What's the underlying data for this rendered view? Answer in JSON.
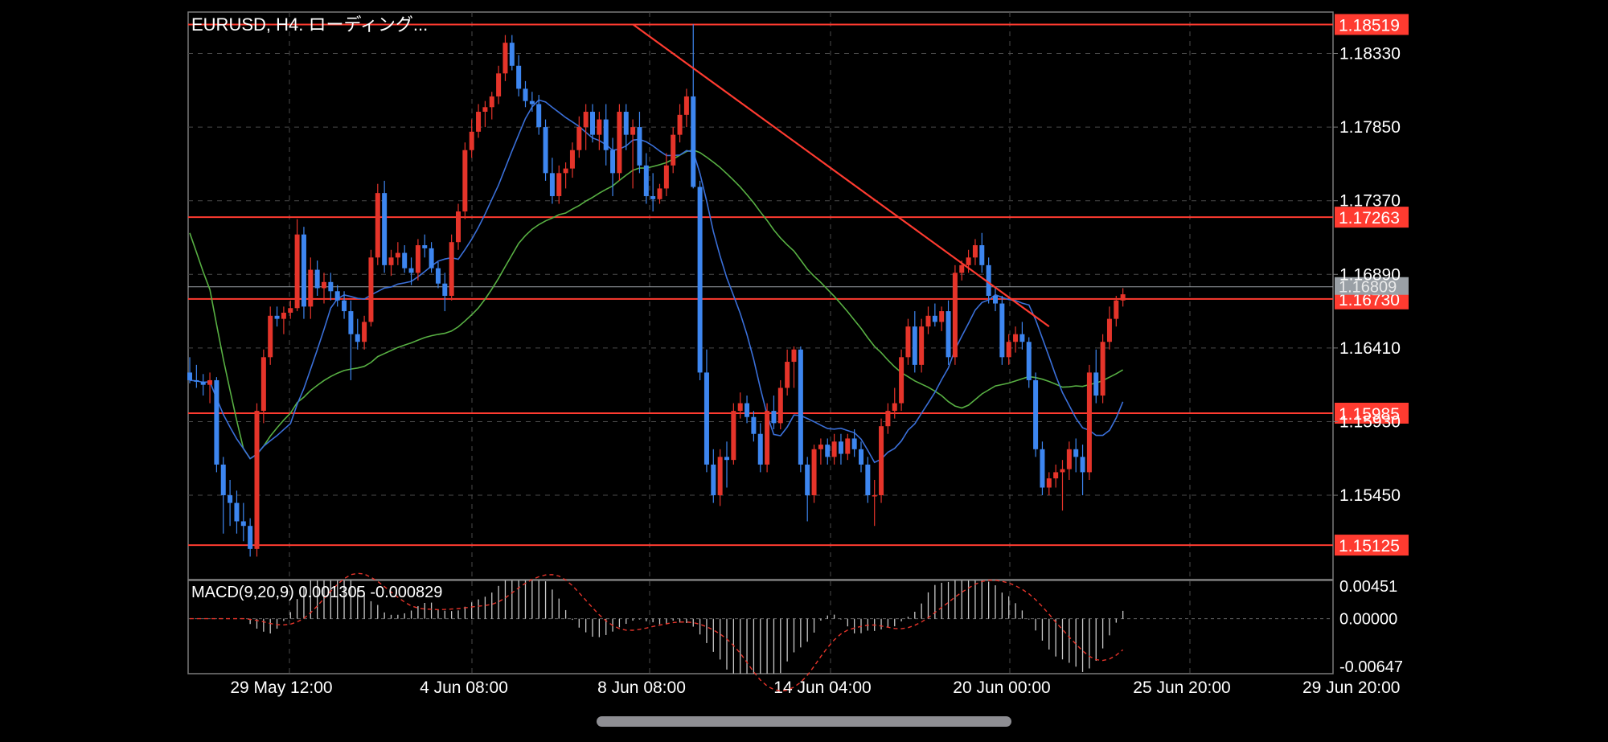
{
  "header": {
    "title": "EURUSD, H4. ローディング..."
  },
  "macd_label": "MACD(9,20,9) 0.001305 -0.000829",
  "colors": {
    "bull": "#e5342a",
    "bear": "#3d86f0",
    "line_red": "#ff3b30",
    "ma_fast": "#3a6fd8",
    "ma_slow": "#58b043",
    "grid": "#4a4a4a"
  },
  "chart_data": [
    {
      "type": "candlestick",
      "title": "EURUSD, H4. ローディング...",
      "ylim": [
        1.149,
        1.186
      ],
      "price_ticks": [
        "1.18330",
        "1.17850",
        "1.17370",
        "1.16890",
        "1.16410",
        "1.15930",
        "1.15450"
      ],
      "x_ticks": [
        "29 May 12:00",
        "4 Jun 08:00",
        "8 Jun 08:00",
        "14 Jun 04:00",
        "20 Jun 00:00",
        "25 Jun 20:00",
        "29 Jun 20:00"
      ],
      "current_price": "1.16809",
      "horizontal_lines": [
        {
          "label": "1.18519",
          "value": 1.18519
        },
        {
          "label": "1.17263",
          "value": 1.17263
        },
        {
          "label": "1.16730",
          "value": 1.1673
        },
        {
          "label": "1.15985",
          "value": 1.15985
        },
        {
          "label": "1.15125",
          "value": 1.15125
        }
      ],
      "trendline": {
        "from": {
          "bar": 66,
          "price": 1.1852
        },
        "to": {
          "bar": 128,
          "price": 1.1655
        }
      },
      "candles": [
        [
          1.1625,
          1.1635,
          1.1618,
          1.162
        ],
        [
          1.162,
          1.163,
          1.1615,
          1.1619
        ],
        [
          1.1619,
          1.1624,
          1.161,
          1.1617
        ],
        [
          1.1617,
          1.1625,
          1.1605,
          1.162
        ],
        [
          1.162,
          1.1622,
          1.156,
          1.1565
        ],
        [
          1.1565,
          1.157,
          1.152,
          1.1545
        ],
        [
          1.1545,
          1.1555,
          1.1525,
          1.154
        ],
        [
          1.154,
          1.1548,
          1.152,
          1.1528
        ],
        [
          1.1528,
          1.154,
          1.1515,
          1.1525
        ],
        [
          1.1525,
          1.153,
          1.1505,
          1.151
        ],
        [
          1.151,
          1.1605,
          1.1505,
          1.16
        ],
        [
          1.16,
          1.164,
          1.1592,
          1.1635
        ],
        [
          1.1635,
          1.1668,
          1.163,
          1.1662
        ],
        [
          1.1662,
          1.1668,
          1.1655,
          1.166
        ],
        [
          1.166,
          1.1668,
          1.165,
          1.1664
        ],
        [
          1.1664,
          1.1672,
          1.166,
          1.1667
        ],
        [
          1.1667,
          1.1725,
          1.1665,
          1.1715
        ],
        [
          1.1715,
          1.172,
          1.166,
          1.1668
        ],
        [
          1.1668,
          1.17,
          1.166,
          1.1692
        ],
        [
          1.1692,
          1.1698,
          1.1675,
          1.168
        ],
        [
          1.168,
          1.169,
          1.167,
          1.1684
        ],
        [
          1.1684,
          1.169,
          1.1672,
          1.1678
        ],
        [
          1.1678,
          1.1682,
          1.1668,
          1.1672
        ],
        [
          1.1672,
          1.1678,
          1.166,
          1.1665
        ],
        [
          1.1665,
          1.1672,
          1.162,
          1.165
        ],
        [
          1.165,
          1.166,
          1.164,
          1.1645
        ],
        [
          1.1645,
          1.1662,
          1.164,
          1.1658
        ],
        [
          1.1658,
          1.1705,
          1.1655,
          1.17
        ],
        [
          1.17,
          1.1748,
          1.1695,
          1.1742
        ],
        [
          1.1742,
          1.175,
          1.169,
          1.1695
        ],
        [
          1.1695,
          1.1705,
          1.1688,
          1.17
        ],
        [
          1.17,
          1.171,
          1.1695,
          1.1703
        ],
        [
          1.1703,
          1.1708,
          1.169,
          1.1693
        ],
        [
          1.1693,
          1.17,
          1.1682,
          1.169
        ],
        [
          1.169,
          1.1712,
          1.1685,
          1.1708
        ],
        [
          1.1708,
          1.1715,
          1.17,
          1.1706
        ],
        [
          1.1706,
          1.171,
          1.169,
          1.1693
        ],
        [
          1.1693,
          1.1697,
          1.168,
          1.1683
        ],
        [
          1.1683,
          1.169,
          1.1665,
          1.1675
        ],
        [
          1.1675,
          1.1715,
          1.1672,
          1.171
        ],
        [
          1.171,
          1.1735,
          1.1705,
          1.173
        ],
        [
          1.173,
          1.1775,
          1.1725,
          1.177
        ],
        [
          1.177,
          1.179,
          1.1765,
          1.1782
        ],
        [
          1.1782,
          1.18,
          1.1778,
          1.1795
        ],
        [
          1.1795,
          1.1802,
          1.1785,
          1.1798
        ],
        [
          1.1798,
          1.1808,
          1.179,
          1.1805
        ],
        [
          1.1805,
          1.1825,
          1.18,
          1.182
        ],
        [
          1.182,
          1.1845,
          1.1815,
          1.184
        ],
        [
          1.184,
          1.1845,
          1.1822,
          1.1825
        ],
        [
          1.1825,
          1.1832,
          1.1805,
          1.181
        ],
        [
          1.181,
          1.1815,
          1.1798,
          1.1802
        ],
        [
          1.1802,
          1.1808,
          1.1795,
          1.18
        ],
        [
          1.18,
          1.1806,
          1.178,
          1.1785
        ],
        [
          1.1785,
          1.179,
          1.175,
          1.1755
        ],
        [
          1.1755,
          1.1765,
          1.1735,
          1.174
        ],
        [
          1.174,
          1.176,
          1.1735,
          1.1755
        ],
        [
          1.1755,
          1.1762,
          1.1745,
          1.1758
        ],
        [
          1.1758,
          1.1775,
          1.1752,
          1.177
        ],
        [
          1.177,
          1.1792,
          1.1765,
          1.1785
        ],
        [
          1.1785,
          1.18,
          1.177,
          1.1795
        ],
        [
          1.1795,
          1.18,
          1.1775,
          1.178
        ],
        [
          1.178,
          1.1795,
          1.177,
          1.179
        ],
        [
          1.179,
          1.18,
          1.176,
          1.177
        ],
        [
          1.177,
          1.1778,
          1.174,
          1.1755
        ],
        [
          1.1755,
          1.18,
          1.175,
          1.1795
        ],
        [
          1.1795,
          1.18,
          1.177,
          1.178
        ],
        [
          1.178,
          1.179,
          1.1745,
          1.1785
        ],
        [
          1.1785,
          1.1795,
          1.1755,
          1.176
        ],
        [
          1.176,
          1.1768,
          1.1735,
          1.174
        ],
        [
          1.174,
          1.1755,
          1.173,
          1.1738
        ],
        [
          1.1738,
          1.1748,
          1.1735,
          1.1745
        ],
        [
          1.1745,
          1.1768,
          1.174,
          1.176
        ],
        [
          1.176,
          1.1785,
          1.1755,
          1.178
        ],
        [
          1.178,
          1.18,
          1.1775,
          1.1793
        ],
        [
          1.1793,
          1.181,
          1.1785,
          1.1805
        ],
        [
          1.1805,
          1.1852,
          1.1745,
          1.1746
        ],
        [
          1.1746,
          1.175,
          1.162,
          1.1625
        ],
        [
          1.1625,
          1.164,
          1.156,
          1.1565
        ],
        [
          1.1565,
          1.1575,
          1.154,
          1.1545
        ],
        [
          1.1545,
          1.1575,
          1.1538,
          1.157
        ],
        [
          1.157,
          1.158,
          1.155,
          1.1568
        ],
        [
          1.1568,
          1.1605,
          1.1565,
          1.16
        ],
        [
          1.16,
          1.1612,
          1.1595,
          1.1605
        ],
        [
          1.1605,
          1.161,
          1.1592,
          1.1596
        ],
        [
          1.1596,
          1.16,
          1.158,
          1.1585
        ],
        [
          1.1585,
          1.1592,
          1.156,
          1.1565
        ],
        [
          1.1565,
          1.1605,
          1.156,
          1.16
        ],
        [
          1.16,
          1.161,
          1.1588,
          1.1592
        ],
        [
          1.1592,
          1.162,
          1.1588,
          1.1615
        ],
        [
          1.1615,
          1.164,
          1.161,
          1.1632
        ],
        [
          1.1632,
          1.1642,
          1.1615,
          1.164
        ],
        [
          1.164,
          1.1642,
          1.156,
          1.1565
        ],
        [
          1.1565,
          1.157,
          1.1528,
          1.1545
        ],
        [
          1.1545,
          1.1578,
          1.154,
          1.1575
        ],
        [
          1.1575,
          1.1582,
          1.1565,
          1.1578
        ],
        [
          1.1578,
          1.1582,
          1.1565,
          1.157
        ],
        [
          1.157,
          1.1585,
          1.1565,
          1.158
        ],
        [
          1.158,
          1.1585,
          1.1565,
          1.1572
        ],
        [
          1.1572,
          1.1585,
          1.1568,
          1.1582
        ],
        [
          1.1582,
          1.1588,
          1.157,
          1.1575
        ],
        [
          1.1575,
          1.158,
          1.156,
          1.1565
        ],
        [
          1.1565,
          1.157,
          1.154,
          1.1545
        ],
        [
          1.1545,
          1.1555,
          1.1525,
          1.1545
        ],
        [
          1.1545,
          1.1595,
          1.154,
          1.159
        ],
        [
          1.159,
          1.1605,
          1.1585,
          1.16
        ],
        [
          1.16,
          1.1615,
          1.1595,
          1.1605
        ],
        [
          1.1605,
          1.164,
          1.16,
          1.1635
        ],
        [
          1.1635,
          1.166,
          1.163,
          1.1655
        ],
        [
          1.1655,
          1.1665,
          1.1625,
          1.163
        ],
        [
          1.163,
          1.166,
          1.1625,
          1.1655
        ],
        [
          1.1655,
          1.1668,
          1.165,
          1.1662
        ],
        [
          1.1662,
          1.167,
          1.1655,
          1.1658
        ],
        [
          1.1658,
          1.1668,
          1.1652,
          1.1665
        ],
        [
          1.1665,
          1.1672,
          1.163,
          1.1635
        ],
        [
          1.1635,
          1.1695,
          1.163,
          1.169
        ],
        [
          1.169,
          1.1698,
          1.1685,
          1.1695
        ],
        [
          1.1695,
          1.1705,
          1.169,
          1.17
        ],
        [
          1.17,
          1.1712,
          1.1695,
          1.1708
        ],
        [
          1.1708,
          1.1716,
          1.169,
          1.1695
        ],
        [
          1.1695,
          1.17,
          1.167,
          1.1675
        ],
        [
          1.1675,
          1.168,
          1.1665,
          1.167
        ],
        [
          1.167,
          1.1675,
          1.163,
          1.1635
        ],
        [
          1.1635,
          1.165,
          1.163,
          1.1645
        ],
        [
          1.1645,
          1.1655,
          1.1638,
          1.165
        ],
        [
          1.165,
          1.1658,
          1.164,
          1.1645
        ],
        [
          1.1645,
          1.1648,
          1.1615,
          1.162
        ],
        [
          1.162,
          1.1625,
          1.157,
          1.1575
        ],
        [
          1.1575,
          1.158,
          1.1545,
          1.155
        ],
        [
          1.155,
          1.156,
          1.1545,
          1.1556
        ],
        [
          1.1556,
          1.1565,
          1.155,
          1.156
        ],
        [
          1.156,
          1.1568,
          1.1535,
          1.1562
        ],
        [
          1.1562,
          1.158,
          1.1555,
          1.1575
        ],
        [
          1.1575,
          1.1582,
          1.156,
          1.157
        ],
        [
          1.157,
          1.1578,
          1.1545,
          1.156
        ],
        [
          1.156,
          1.163,
          1.1555,
          1.1625
        ],
        [
          1.1625,
          1.164,
          1.1605,
          1.161
        ],
        [
          1.161,
          1.165,
          1.1605,
          1.1645
        ],
        [
          1.1645,
          1.1668,
          1.164,
          1.166
        ],
        [
          1.166,
          1.1675,
          1.1655,
          1.1672
        ],
        [
          1.1672,
          1.168,
          1.1668,
          1.1676
        ]
      ]
    },
    {
      "type": "bar",
      "title": "MACD(9,20,9) 0.001305 -0.000829",
      "ylim": [
        -0.00647,
        0.00451
      ],
      "tick_labels": [
        "0.00451",
        "0.00000",
        "-0.00647"
      ],
      "series": [
        {
          "name": "MACD",
          "kind": "histogram"
        },
        {
          "name": "Signal",
          "kind": "line-dashed"
        }
      ]
    }
  ]
}
